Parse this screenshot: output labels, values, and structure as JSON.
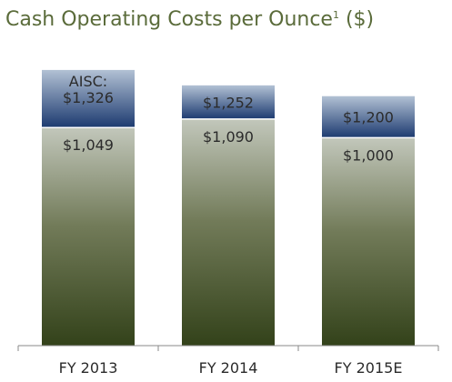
{
  "chart_data": {
    "type": "bar",
    "stacked": true,
    "title": "Cash Operating Costs per Ounce",
    "title_superscript": "1",
    "title_suffix": " ($)",
    "categories": [
      "FY 2013",
      "FY 2014",
      "FY 2015E"
    ],
    "series": [
      {
        "values": [
          1049,
          1090,
          1000
        ],
        "labels": [
          "$1,049",
          "$1,090",
          "$1,000"
        ]
      },
      {
        "values": [
          277,
          162,
          200
        ],
        "labels": [
          "$1,326",
          "$1,252",
          "$1,200"
        ]
      }
    ],
    "annotation": "AISC:",
    "ylim": [
      0,
      1400
    ],
    "grid": false,
    "colors": {
      "cash_top": "#c2c7bb",
      "cash_mid": "#727b59",
      "cash_bottom": "#33421a",
      "aisc_top": "#b2c1d4",
      "aisc_bottom": "#1c3a70",
      "title": "#5a6b3a",
      "axis": "#8a8a8a"
    }
  }
}
